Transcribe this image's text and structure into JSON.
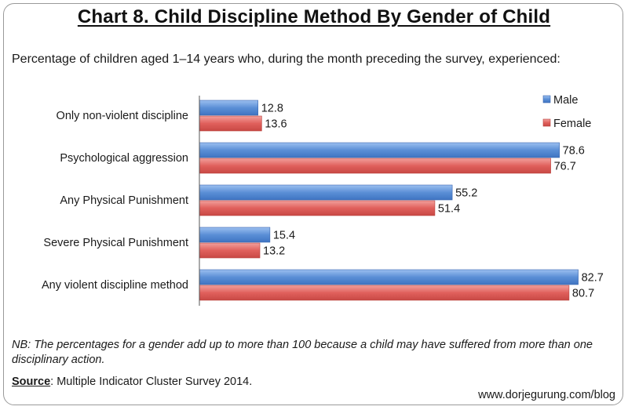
{
  "chart_data": {
    "type": "bar",
    "orientation": "horizontal",
    "title": "Chart 8. Child Discipline Method By Gender of Child",
    "subtitle": "Percentage of children aged 1–14 years who, during the month preceding the survey, experienced:",
    "categories": [
      "Only non-violent discipline",
      "Psychological aggression",
      "Any Physical Punishment",
      "Severe Physical Punishment",
      "Any violent discipline method"
    ],
    "series": [
      {
        "name": "Male",
        "values": [
          12.8,
          78.6,
          55.2,
          15.4,
          82.7
        ],
        "labels": [
          "12.8",
          "78.6",
          "55.2",
          "15.4",
          "82.7"
        ],
        "color": "#5b8fd6"
      },
      {
        "name": "Female",
        "values": [
          13.6,
          76.7,
          51.4,
          13.2,
          80.7
        ],
        "labels": [
          "13.6",
          "76.7",
          "51.4",
          "13.2",
          "80.7"
        ],
        "color": "#e0605c"
      }
    ],
    "xlim": [
      0,
      85
    ],
    "grid": false,
    "legend": "top-right"
  },
  "note": "NB: The percentages for a gender add up to more than 100 because a child may have suffered from more than one disciplinary action.",
  "source": {
    "label": "Source",
    "text": ": Multiple Indicator Cluster Survey 2014."
  },
  "website": "www.dorjegurung.com/blog"
}
